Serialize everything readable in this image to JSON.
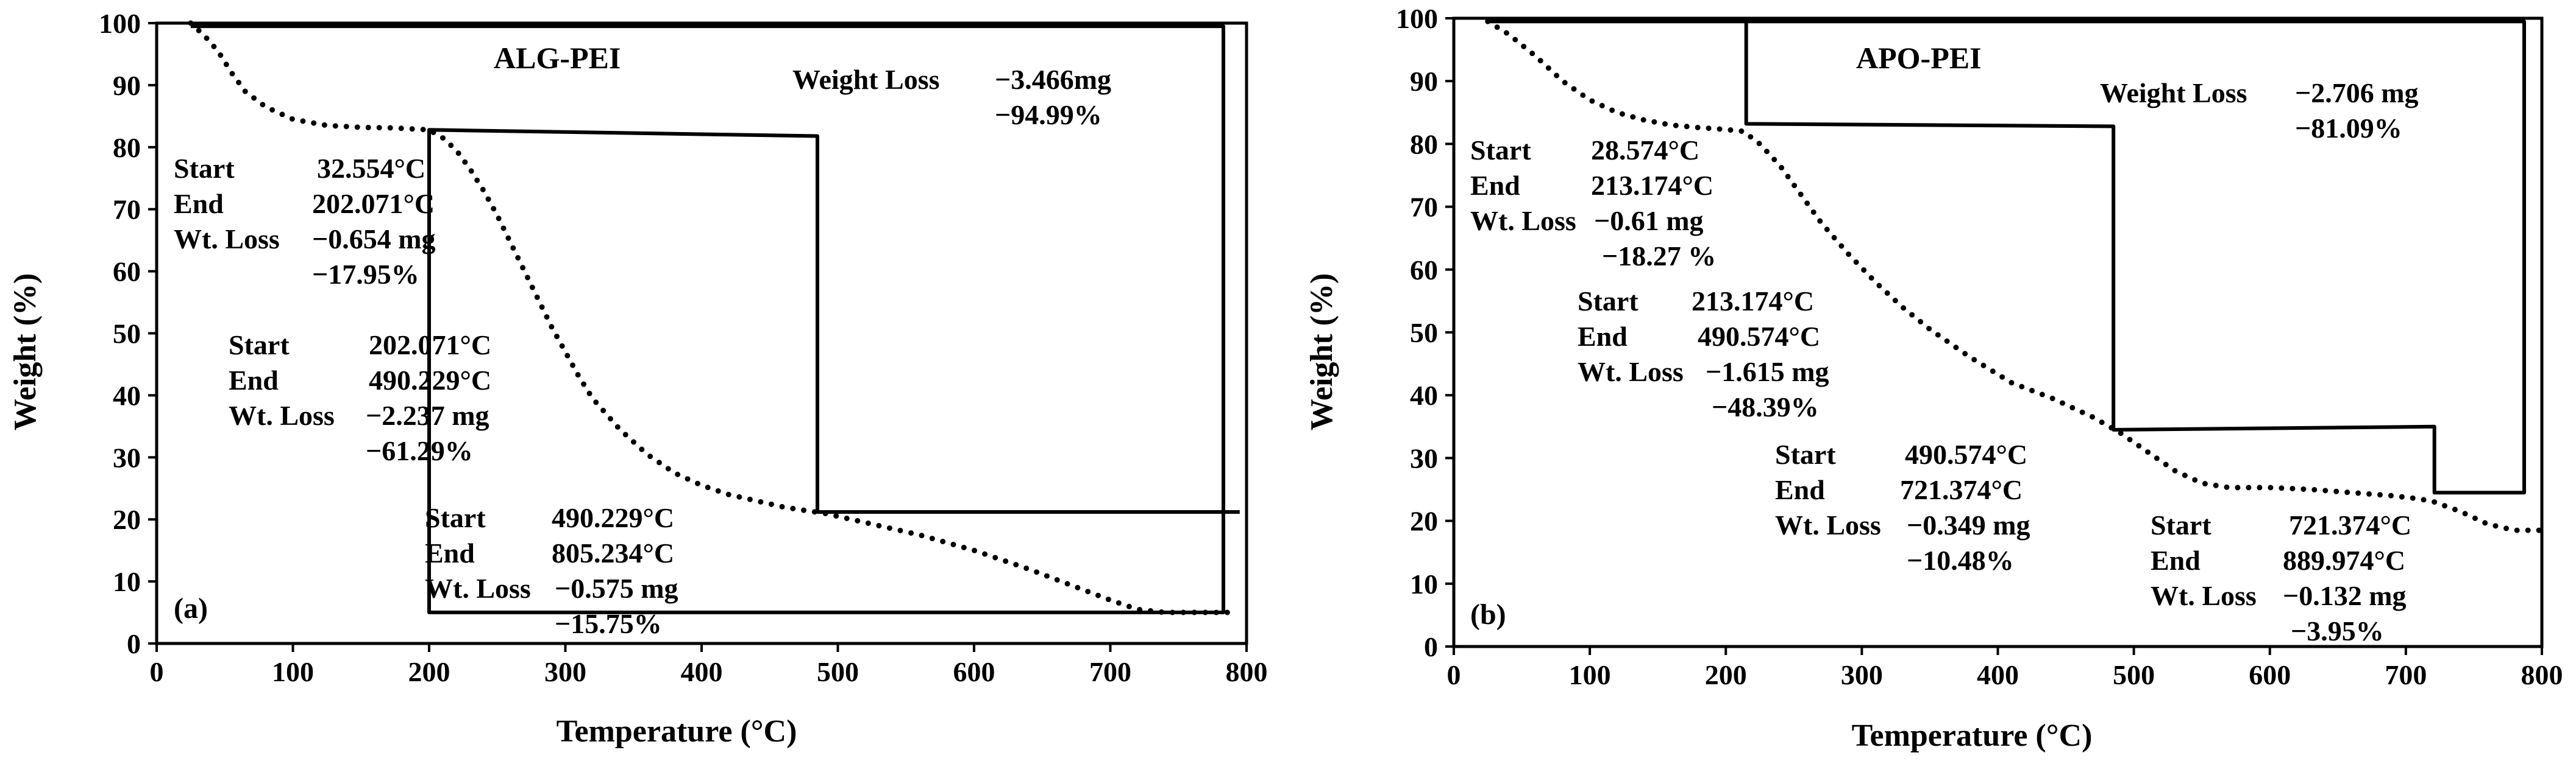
{
  "chart_data": [
    {
      "type": "line",
      "panel_label": "(a)",
      "title": "ALG-PEI",
      "xlabel": "Temperature (°C)",
      "ylabel": "Weight (%)",
      "xlim": [
        0,
        800
      ],
      "ylim": [
        0,
        100
      ],
      "xticks": [
        0,
        100,
        200,
        300,
        400,
        500,
        600,
        700,
        800
      ],
      "yticks": [
        0,
        10,
        20,
        30,
        40,
        50,
        60,
        70,
        80,
        90,
        100
      ],
      "grid": false,
      "series": [
        {
          "name": "TGA curve",
          "style": "dotted",
          "x": [
            25,
            35,
            45,
            55,
            65,
            80,
            100,
            125,
            150,
            175,
            200,
            210,
            220,
            230,
            240,
            250,
            260,
            270,
            280,
            290,
            300,
            310,
            320,
            340,
            360,
            380,
            400,
            420,
            440,
            460,
            480,
            490,
            520,
            560,
            600,
            640,
            670,
            700,
            720,
            740,
            760,
            790
          ],
          "y": [
            100,
            98,
            95.5,
            92,
            89,
            86.5,
            84.5,
            83.5,
            83.2,
            83.1,
            82.8,
            81.5,
            79.5,
            76.5,
            73,
            69,
            64.5,
            60,
            55.5,
            51,
            47,
            43,
            39.5,
            34.5,
            30.5,
            27.5,
            25.5,
            24,
            23,
            22,
            21.3,
            21,
            19.5,
            17.5,
            15,
            12,
            9.5,
            7,
            5.5,
            5,
            5,
            5
          ]
        },
        {
          "name": "Weight loss steps",
          "style": "solid",
          "x": [
            25,
            783,
            783,
            200,
            200,
            485,
            485,
            795
          ],
          "y": [
            99.5,
            99.5,
            5,
            5,
            82.8,
            81.8,
            21.2,
            21.2
          ]
        }
      ],
      "annotations": [
        {
          "lines": [
            [
              "Wt. Loss",
              "−0.575 mg",
              "−15.75%"
            ]
          ]
        },
        {
          "key": "Weight Loss",
          "values": [
            "−3.466mg",
            "−94.99%"
          ]
        },
        {
          "steps": [
            {
              "start_label": "Start",
              "start": "32.554°C",
              "end_label": "End",
              "end": "202.071°C",
              "loss_label": "Wt. Loss",
              "loss_mg": "−0.654 mg",
              "loss_pct": "−17.95%"
            },
            {
              "start_label": "Start",
              "start": "202.071°C",
              "end_label": "End",
              "end": "490.229°C",
              "loss_label": "Wt. Loss",
              "loss_mg": "−2.237 mg",
              "loss_pct": "−61.29%"
            },
            {
              "start_label": "Start",
              "start": "490.229°C",
              "end_label": "End",
              "end": "805.234°C",
              "loss_label": "Wt. Loss",
              "loss_mg": "−0.575 mg",
              "loss_pct": "−15.75%"
            }
          ]
        }
      ]
    },
    {
      "type": "line",
      "panel_label": "(b)",
      "title": "APO-PEI",
      "xlabel": "Temperature (°C)",
      "ylabel": "Weight (%)",
      "xlim": [
        0,
        800
      ],
      "ylim": [
        0,
        100
      ],
      "xticks": [
        0,
        100,
        200,
        300,
        400,
        500,
        600,
        700,
        800
      ],
      "yticks": [
        0,
        10,
        20,
        30,
        40,
        50,
        60,
        70,
        80,
        90,
        100
      ],
      "grid": false,
      "series": [
        {
          "name": "TGA curve",
          "style": "dotted",
          "x": [
            25,
            40,
            60,
            80,
            100,
            120,
            140,
            160,
            180,
            200,
            213,
            225,
            240,
            255,
            270,
            290,
            310,
            330,
            350,
            380,
            410,
            440,
            470,
            490,
            510,
            530,
            550,
            570,
            600,
            630,
            660,
            690,
            710,
            721,
            740,
            760,
            780,
            800
          ],
          "y": [
            99.5,
            97.5,
            94,
            90,
            87,
            85,
            83.8,
            83,
            82.6,
            82.3,
            82,
            80,
            76.5,
            72,
            67.5,
            62.5,
            58,
            54,
            50.5,
            46,
            42,
            39.5,
            36.5,
            34,
            31,
            28,
            26,
            25.3,
            25.3,
            25,
            24.5,
            24,
            23.5,
            23,
            21.5,
            19.5,
            18.5,
            18.5
          ]
        },
        {
          "name": "Weight loss steps",
          "style": "solid",
          "x": [
            25,
            787,
            787,
            721,
            721,
            485,
            485,
            215,
            215,
            787
          ],
          "y": [
            99.5,
            99.5,
            24.5,
            24.5,
            35,
            34.5,
            82.8,
            83.2,
            99.5,
            99.5
          ]
        }
      ],
      "annotations": [
        {
          "key": "Weight Loss",
          "values": [
            "−2.706 mg",
            "−81.09%"
          ]
        },
        {
          "steps": [
            {
              "start_label": "Start",
              "start": "28.574°C",
              "end_label": "End",
              "end": "213.174°C",
              "loss_label": "Wt. Loss",
              "loss_mg": "−0.61 mg",
              "loss_pct": "−18.27 %"
            },
            {
              "start_label": "Start",
              "start": "213.174°C",
              "end_label": "End",
              "end": "490.574°C",
              "loss_label": "Wt. Loss",
              "loss_mg": "−1.615 mg",
              "loss_pct": "−48.39%"
            },
            {
              "start_label": "Start",
              "start": "490.574°C",
              "end_label": "End",
              "end": "721.374°C",
              "loss_label": "Wt. Loss",
              "loss_mg": "−0.349 mg",
              "loss_pct": "−10.48%"
            },
            {
              "start_label": "Start",
              "start": "721.374°C",
              "end_label": "End",
              "end": "889.974°C",
              "loss_label": "Wt. Loss",
              "loss_mg": "−0.132 mg",
              "loss_pct": "−3.95%"
            }
          ]
        }
      ]
    }
  ]
}
